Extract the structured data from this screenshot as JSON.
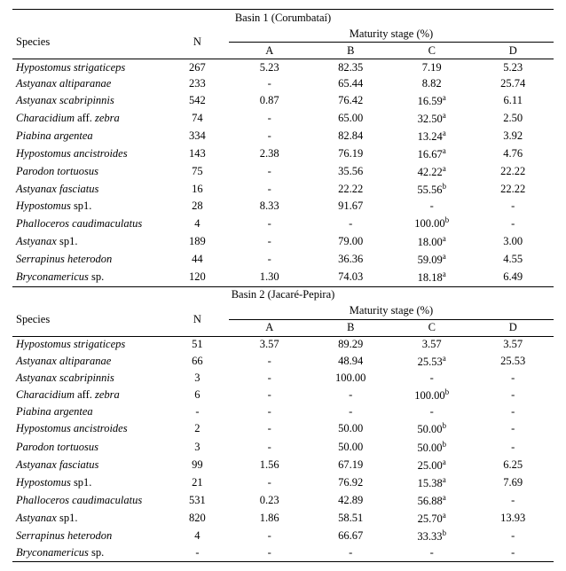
{
  "basins": [
    {
      "title": "Basin 1 (Corumbataí)",
      "header": {
        "species": "Species",
        "maturity": "Maturity stage (%)",
        "N": "N",
        "A": "A",
        "B": "B",
        "C": "C",
        "D": "D"
      },
      "rows": [
        {
          "sp_html": "Hypostomus strigaticeps",
          "N": "267",
          "A": "5.23",
          "B": "82.35",
          "C": {
            "v": "7.19"
          },
          "D": "5.23"
        },
        {
          "sp_html": "Astyanax altiparanae",
          "N": "233",
          "A": "-",
          "B": "65.44",
          "C": {
            "v": "8.82"
          },
          "D": "25.74"
        },
        {
          "sp_html": "Astyanax scabripinnis",
          "N": "542",
          "A": "0.87",
          "B": "76.42",
          "C": {
            "v": "16.59",
            "sup": "a"
          },
          "D": "6.11"
        },
        {
          "sp_html": "Characidium <span style=\"font-style:normal\">aff.</span> zebra",
          "N": "74",
          "A": "-",
          "B": "65.00",
          "C": {
            "v": "32.50",
            "sup": "a"
          },
          "D": "2.50"
        },
        {
          "sp_html": "Piabina argentea",
          "N": "334",
          "A": "-",
          "B": "82.84",
          "C": {
            "v": "13.24",
            "sup": "a"
          },
          "D": "3.92"
        },
        {
          "sp_html": "Hypostomus ancistroides",
          "N": "143",
          "A": "2.38",
          "B": "76.19",
          "C": {
            "v": "16.67",
            "sup": "a"
          },
          "D": "4.76"
        },
        {
          "sp_html": "Parodon tortuosus",
          "N": "75",
          "A": "-",
          "B": "35.56",
          "C": {
            "v": "42.22",
            "sup": "a"
          },
          "D": "22.22"
        },
        {
          "sp_html": "Astyanax fasciatus",
          "N": "16",
          "A": "-",
          "B": "22.22",
          "C": {
            "v": "55.56",
            "sup": "b"
          },
          "D": "22.22"
        },
        {
          "sp_html": "Hypostomus <span style=\"font-style:normal\">sp1.</span>",
          "N": "28",
          "A": "8.33",
          "B": "91.67",
          "C": {
            "v": "-"
          },
          "D": "-"
        },
        {
          "sp_html": "Phalloceros caudimaculatus",
          "N": "4",
          "A": "-",
          "B": "-",
          "C": {
            "v": "100.00",
            "sup": "b"
          },
          "D": "-"
        },
        {
          "sp_html": "Astyanax <span style=\"font-style:normal\">sp1.</span>",
          "N": "189",
          "A": "-",
          "B": "79.00",
          "C": {
            "v": "18.00",
            "sup": "a"
          },
          "D": "3.00"
        },
        {
          "sp_html": "Serrapinus heterodon",
          "N": "44",
          "A": "-",
          "B": "36.36",
          "C": {
            "v": "59.09",
            "sup": "a"
          },
          "D": "4.55"
        },
        {
          "sp_html": "Bryconamericus <span style=\"font-style:normal\">sp.</span>",
          "N": "120",
          "A": "1.30",
          "B": "74.03",
          "C": {
            "v": "18.18",
            "sup": "a"
          },
          "D": "6.49"
        }
      ]
    },
    {
      "title": "Basin 2 (Jacaré-Pepira)",
      "header": {
        "species": "Species",
        "maturity": "Maturity stage (%)",
        "N": "N",
        "A": "A",
        "B": "B",
        "C": "C",
        "D": "D"
      },
      "rows": [
        {
          "sp_html": "Hypostomus strigaticeps",
          "N": "51",
          "A": "3.57",
          "B": "89.29",
          "C": {
            "v": "3.57"
          },
          "D": "3.57"
        },
        {
          "sp_html": "Astyanax altiparanae",
          "N": "66",
          "A": "-",
          "B": "48.94",
          "C": {
            "v": "25.53",
            "sup": "a"
          },
          "D": "25.53"
        },
        {
          "sp_html": "Astyanax scabripinnis",
          "N": "3",
          "A": "-",
          "B": "100.00",
          "C": {
            "v": "-"
          },
          "D": "-"
        },
        {
          "sp_html": "Characidium <span style=\"font-style:normal\">aff.</span> zebra",
          "N": "6",
          "A": "-",
          "B": "-",
          "C": {
            "v": "100.00",
            "sup": "b"
          },
          "D": "-"
        },
        {
          "sp_html": "Piabina argentea",
          "N": "-",
          "A": "-",
          "B": "-",
          "C": {
            "v": "-"
          },
          "D": "-"
        },
        {
          "sp_html": "Hypostomus ancistroides",
          "N": "2",
          "A": "-",
          "B": "50.00",
          "C": {
            "v": "50.00",
            "sup": "b"
          },
          "D": "-"
        },
        {
          "sp_html": "Parodon tortuosus",
          "N": "3",
          "A": "-",
          "B": "50.00",
          "C": {
            "v": "50.00",
            "sup": "b"
          },
          "D": "-"
        },
        {
          "sp_html": "Astyanax fasciatus",
          "N": "99",
          "A": "1.56",
          "B": "67.19",
          "C": {
            "v": "25.00",
            "sup": "a"
          },
          "D": "6.25"
        },
        {
          "sp_html": "Hypostomus <span style=\"font-style:normal\">sp1.</span>",
          "N": "21",
          "A": "-",
          "B": "76.92",
          "C": {
            "v": "15.38",
            "sup": "a"
          },
          "D": "7.69"
        },
        {
          "sp_html": "Phalloceros caudimaculatus",
          "N": "531",
          "A": "0.23",
          "B": "42.89",
          "C": {
            "v": "56.88",
            "sup": "a"
          },
          "D": "-"
        },
        {
          "sp_html": "Astyanax <span style=\"font-style:normal\">sp1.</span>",
          "N": "820",
          "A": "1.86",
          "B": "58.51",
          "C": {
            "v": "25.70",
            "sup": "a"
          },
          "D": "13.93"
        },
        {
          "sp_html": "Serrapinus heterodon",
          "N": "4",
          "A": "-",
          "B": "66.67",
          "C": {
            "v": "33.33",
            "sup": "b"
          },
          "D": "-"
        },
        {
          "sp_html": "Bryconamericus <span style=\"font-style:normal\">sp.</span>",
          "N": "-",
          "A": "-",
          "B": "-",
          "C": {
            "v": "-"
          },
          "D": "-"
        }
      ]
    }
  ]
}
